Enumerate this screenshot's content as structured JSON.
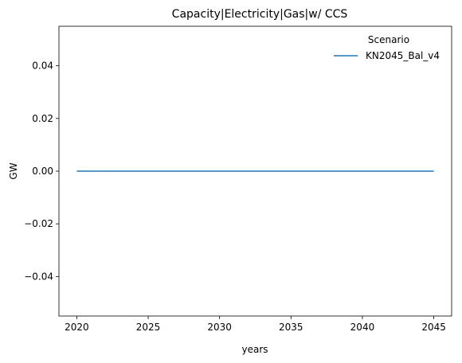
{
  "chart_data": {
    "type": "line",
    "title": "Capacity|Electricity|Gas|w/ CCS",
    "xlabel": "years",
    "ylabel": "GW",
    "xlim": [
      2018.75,
      2046.25
    ],
    "ylim": [
      -0.055,
      0.055
    ],
    "x_ticks": [
      2020,
      2025,
      2030,
      2035,
      2040,
      2045
    ],
    "x_tick_labels": [
      "2020",
      "2025",
      "2030",
      "2035",
      "2040",
      "2045"
    ],
    "y_ticks": [
      0.04,
      0.02,
      0.0,
      -0.02,
      -0.04
    ],
    "y_tick_labels": [
      "0.04",
      "0.02",
      "0.00",
      "−0.02",
      "−0.04"
    ],
    "grid": false,
    "legend": {
      "title": "Scenario",
      "placement": "top-right"
    },
    "series": [
      {
        "name": "KN2045_Bal_v4",
        "color": "#1f77b4",
        "x": [
          2020,
          2025,
          2030,
          2035,
          2040,
          2045
        ],
        "y": [
          0,
          0,
          0,
          0,
          0,
          0
        ]
      }
    ]
  }
}
